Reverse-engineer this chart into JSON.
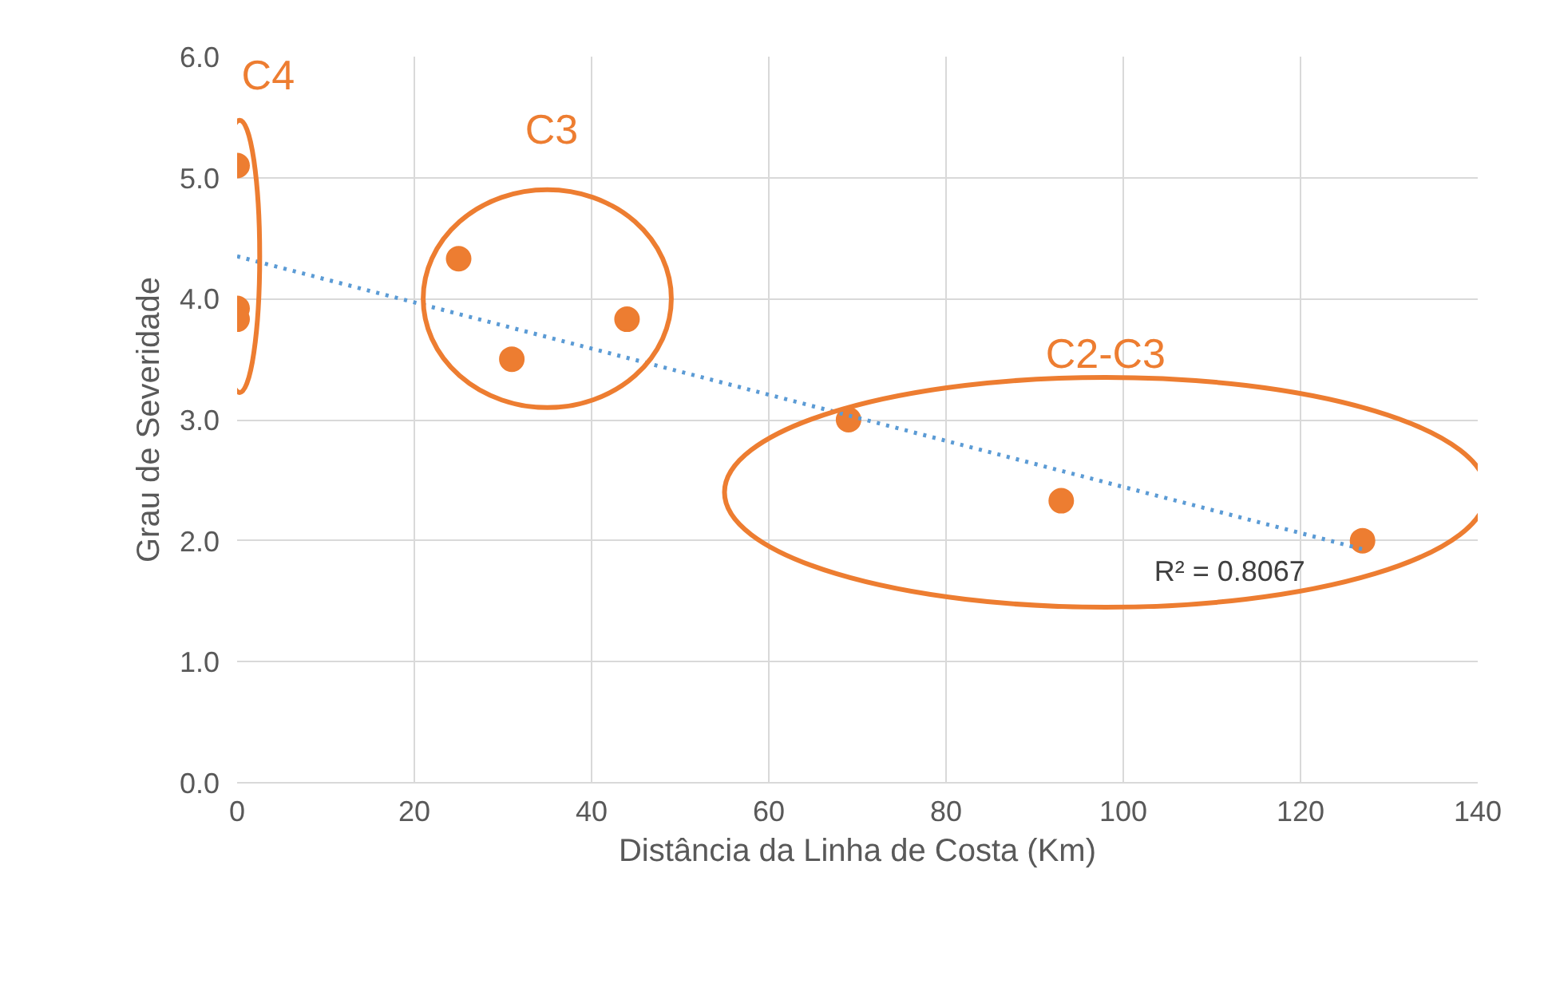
{
  "chart_data": {
    "type": "scatter",
    "xlabel": "Distância da Linha de Costa (Km)",
    "ylabel": "Grau de Severidade",
    "xlim": [
      0,
      140
    ],
    "xticks": [
      0,
      20,
      40,
      60,
      80,
      100,
      120,
      140
    ],
    "ylim": [
      0,
      6
    ],
    "yticks": [
      {
        "value": 0,
        "label": "0.0"
      },
      {
        "value": 1,
        "label": "1.0"
      },
      {
        "value": 2,
        "label": "2.0"
      },
      {
        "value": 3,
        "label": "3.0"
      },
      {
        "value": 4,
        "label": "4.0"
      },
      {
        "value": 5,
        "label": "5.0"
      },
      {
        "value": 6,
        "label": "6.0"
      }
    ],
    "grid": true,
    "marker": "circle",
    "series": [
      {
        "color": "#ed7d31",
        "x": [
          0,
          0,
          0,
          25,
          31,
          44,
          69,
          93,
          127
        ],
        "values": [
          5.1,
          3.92,
          3.83,
          4.33,
          3.5,
          3.83,
          3.0,
          2.33,
          2.0
        ]
      },
      {
        "type": "line",
        "marker": "none",
        "line_style": "dotted",
        "color": "#5b9bd5",
        "x": [
          0,
          127
        ],
        "values": [
          4.35,
          1.93
        ]
      }
    ],
    "annotations": [
      "C4",
      "C3",
      "C2-C3",
      "R² = 0.8067"
    ]
  }
}
